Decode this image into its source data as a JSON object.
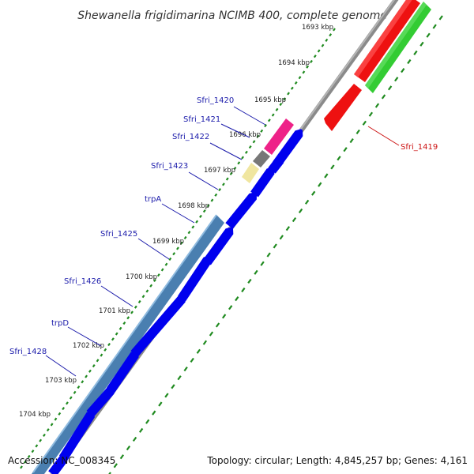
{
  "title": "Shewanella frigidimarina NCIMB 400, complete genome",
  "footer": {
    "accession": "Accession: NC_008345",
    "summary": "Topology: circular; Length: 4,845,257 bp; Genes: 4,161"
  },
  "scale_labels": [
    "1693 kbp",
    "1694 kbp",
    "1695 kbp",
    "1696 kbp",
    "1697 kbp",
    "1698 kbp",
    "1699 kbp",
    "1700 kbp",
    "1701 kbp",
    "1702 kbp",
    "1703 kbp",
    "1704 kbp"
  ],
  "gene_labels": [
    {
      "name": "Sfri_1420",
      "color": "#1a1aaa"
    },
    {
      "name": "Sfri_1421",
      "color": "#1a1aaa"
    },
    {
      "name": "Sfri_1422",
      "color": "#1a1aaa"
    },
    {
      "name": "Sfri_1423",
      "color": "#1a1aaa"
    },
    {
      "name": "trpA",
      "color": "#1a1aaa"
    },
    {
      "name": "Sfri_1425",
      "color": "#1a1aaa"
    },
    {
      "name": "Sfri_1426",
      "color": "#1a1aaa"
    },
    {
      "name": "trpD",
      "color": "#1a1aaa"
    },
    {
      "name": "Sfri_1428",
      "color": "#1a1aaa"
    },
    {
      "name": "Sfri_1419",
      "color": "#cc1111"
    }
  ],
  "colors": {
    "backbone": "#888888",
    "tick_dots": "#1f8a1f",
    "reverse_cds": "#ee1111",
    "reverse_gene": "#33cc33",
    "forward_cds": "#0000ee",
    "forward_gene": "#4a7fb0",
    "pink_feature": "#ee2288",
    "grey_feature": "#777777",
    "yellow_feature": "#f0e6a0"
  }
}
